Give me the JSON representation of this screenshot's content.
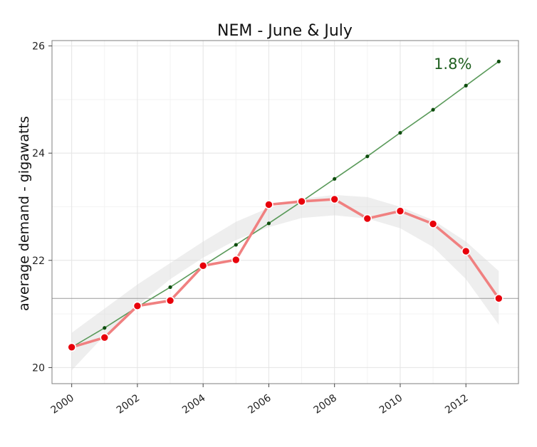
{
  "chart_data": {
    "type": "line",
    "title": "NEM - June & July",
    "xlabel": "",
    "ylabel": "average demand - gigawatts",
    "xlim": [
      1999.4,
      2013.6
    ],
    "ylim": [
      19.7,
      26.1
    ],
    "x_ticks": [
      2000,
      2002,
      2004,
      2006,
      2008,
      2010,
      2012
    ],
    "y_ticks": [
      20,
      22,
      24,
      26
    ],
    "grid": true,
    "background": "#ffffff",
    "x": [
      2000,
      2001,
      2002,
      2003,
      2004,
      2005,
      2006,
      2007,
      2008,
      2009,
      2010,
      2011,
      2012,
      2013
    ],
    "series": [
      {
        "role": "actual",
        "color": "#f08080",
        "marker_color": "#e8000b",
        "values": [
          20.38,
          20.56,
          21.15,
          21.25,
          21.9,
          22.01,
          23.04,
          23.1,
          23.14,
          22.78,
          22.92,
          22.68,
          22.17,
          21.29
        ]
      },
      {
        "role": "trend",
        "color": "#5a9a5a",
        "marker_color": "#0e4d0e",
        "values": [
          20.38,
          20.74,
          21.13,
          21.5,
          21.9,
          22.29,
          22.69,
          23.1,
          23.52,
          23.94,
          24.38,
          24.81,
          25.26,
          25.71
        ]
      }
    ],
    "smooth_band": {
      "color": "#d9d9d9",
      "center": [
        20.3,
        20.85,
        21.35,
        21.8,
        22.2,
        22.55,
        22.8,
        22.97,
        23.03,
        22.98,
        22.8,
        22.5,
        22.0,
        21.3
      ],
      "upper": [
        20.65,
        21.1,
        21.55,
        21.95,
        22.35,
        22.72,
        22.98,
        23.15,
        23.22,
        23.18,
        23.0,
        22.75,
        22.35,
        21.8
      ],
      "lower": [
        19.95,
        20.6,
        21.15,
        21.65,
        22.05,
        22.38,
        22.62,
        22.79,
        22.84,
        22.78,
        22.6,
        22.25,
        21.65,
        20.8
      ]
    },
    "hline": 21.29,
    "hline_color": "#9a9a9a",
    "annotation": {
      "text": "1.8%",
      "x": 2011.6,
      "y": 25.66,
      "color": "#1f5f1f"
    }
  }
}
